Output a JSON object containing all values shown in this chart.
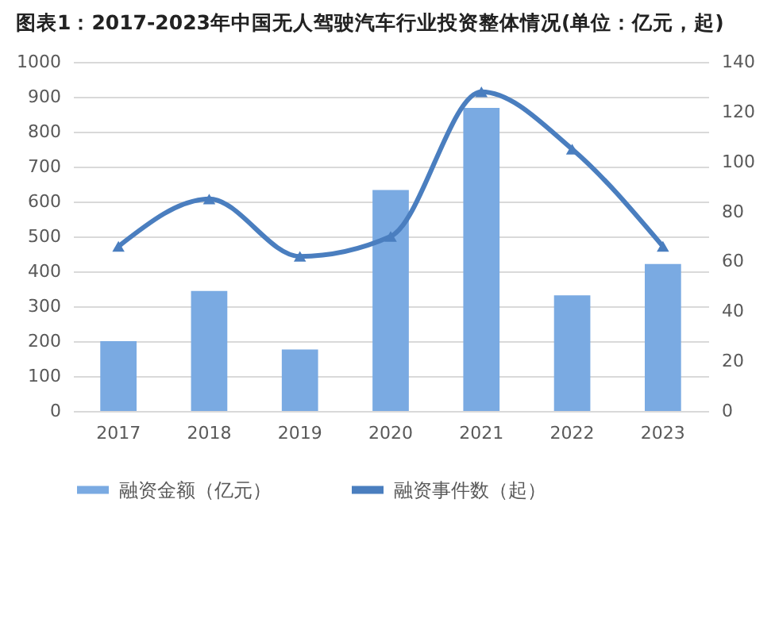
{
  "chart_data": {
    "type": "bar",
    "title": "图表1：2017-2023年中国无人驾驶汽车行业投资整体情况(单位：亿元，起)",
    "categories": [
      "2017",
      "2018",
      "2019",
      "2020",
      "2021",
      "2022",
      "2023"
    ],
    "series": [
      {
        "name": "融资金额（亿元）",
        "color": "#7aaae2",
        "values": [
          200,
          344,
          176,
          633,
          868,
          331,
          421
        ]
      },
      {
        "name": "融资事件数（起）",
        "type": "line",
        "axis": "y2",
        "color": "#4a7ebf",
        "values": [
          66,
          85,
          62,
          70,
          128,
          105,
          66
        ]
      }
    ],
    "ylim": [
      0,
      1000
    ],
    "yticks": [
      0,
      100,
      200,
      300,
      400,
      500,
      600,
      700,
      800,
      900,
      1000
    ],
    "y2lim": [
      0,
      140
    ],
    "y2ticks": [
      0,
      20,
      40,
      60,
      80,
      100,
      120,
      140
    ],
    "grid": "y",
    "legend": "bottom",
    "marker": "triangle",
    "line_style": "solid"
  }
}
